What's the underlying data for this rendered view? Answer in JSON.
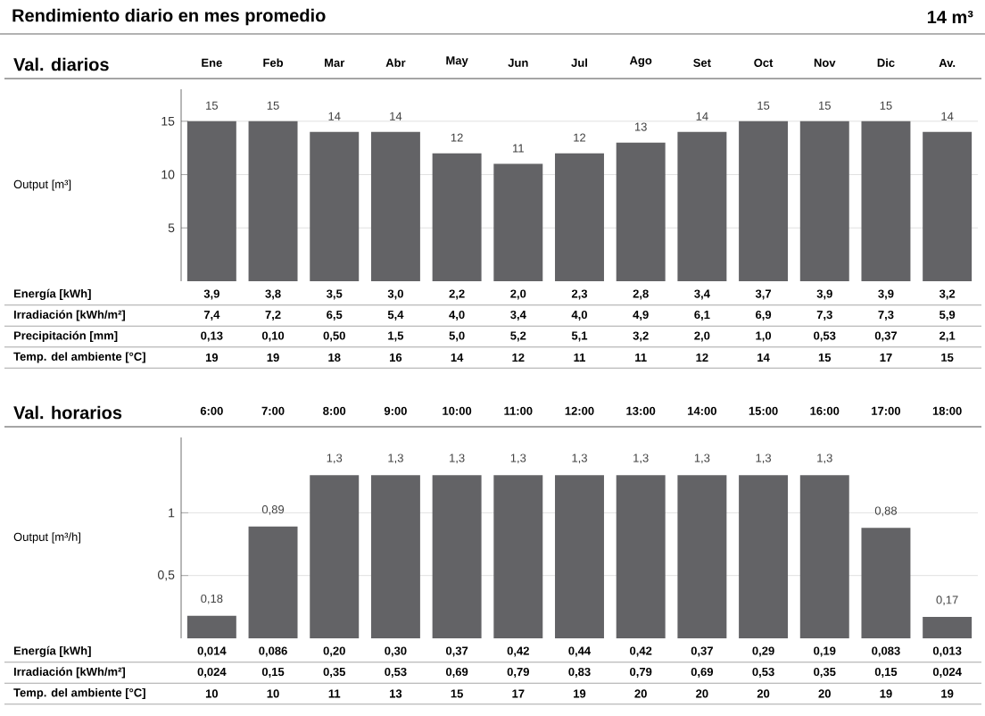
{
  "chart_data": [
    {
      "type": "bar",
      "title": "Val. diarios",
      "ylabel": "Output [m³]",
      "annotations": [
        "Rendimiento diario en mes promedio",
        "14 m³"
      ],
      "categories": [
        "Ene",
        "Feb",
        "Mar",
        "Abr",
        "May",
        "Jun",
        "Jul",
        "Ago",
        "Set",
        "Oct",
        "Nov",
        "Dic",
        "Av."
      ],
      "ylim": [
        0,
        18
      ],
      "yticks": [
        5,
        10,
        15
      ],
      "grid": "y",
      "color": "#636366",
      "values": [
        15,
        15,
        14,
        14,
        12,
        11,
        12,
        13,
        14,
        15,
        15,
        15,
        14
      ],
      "value_labels": [
        "15",
        "15",
        "14",
        "14",
        "12",
        "11",
        "12",
        "13",
        "14",
        "15",
        "15",
        "15",
        "14"
      ]
    },
    {
      "type": "other",
      "title": "Energía [kWh]",
      "values": [
        3.9,
        3.8,
        3.5,
        3.0,
        2.2,
        2.0,
        2.3,
        2.8,
        3.4,
        3.7,
        3.9,
        3.9,
        3.2
      ],
      "value_labels": [
        "3,9",
        "3,8",
        "3,5",
        "3,0",
        "2,2",
        "2,0",
        "2,3",
        "2,8",
        "3,4",
        "3,7",
        "3,9",
        "3,9",
        "3,2"
      ]
    },
    {
      "type": "other",
      "title": "Irradiación [kWh/m²]",
      "values": [
        7.4,
        7.2,
        6.5,
        5.4,
        4.0,
        3.4,
        4.0,
        4.9,
        6.1,
        6.9,
        7.3,
        7.3,
        5.9
      ],
      "value_labels": [
        "7,4",
        "7,2",
        "6,5",
        "5,4",
        "4,0",
        "3,4",
        "4,0",
        "4,9",
        "6,1",
        "6,9",
        "7,3",
        "7,3",
        "5,9"
      ]
    },
    {
      "type": "other",
      "title": "Precipitación [mm]",
      "values": [
        0.13,
        0.1,
        0.5,
        1.5,
        5.0,
        5.2,
        5.1,
        3.2,
        2.0,
        1.0,
        0.53,
        0.37,
        2.1
      ],
      "value_labels": [
        "0,13",
        "0,10",
        "0,50",
        "1,5",
        "5,0",
        "5,2",
        "5,1",
        "3,2",
        "2,0",
        "1,0",
        "0,53",
        "0,37",
        "2,1"
      ]
    },
    {
      "type": "other",
      "title": "Temp. del ambiente [°C]",
      "values": [
        19,
        19,
        18,
        16,
        14,
        12,
        11,
        11,
        12,
        14,
        15,
        17,
        15
      ],
      "value_labels": [
        "19",
        "19",
        "18",
        "16",
        "14",
        "12",
        "11",
        "11",
        "12",
        "14",
        "15",
        "17",
        "15"
      ]
    },
    {
      "type": "bar",
      "title": "Val. horarios",
      "ylabel": "Output [m³/h]",
      "categories": [
        "6:00",
        "7:00",
        "8:00",
        "9:00",
        "10:00",
        "11:00",
        "12:00",
        "13:00",
        "14:00",
        "15:00",
        "16:00",
        "17:00",
        "18:00"
      ],
      "ylim": [
        0,
        1.6
      ],
      "yticks": [
        {
          "value": 0.5,
          "label": "0,5"
        },
        1
      ],
      "grid": "y",
      "color": "#636366",
      "values": [
        0.18,
        0.89,
        1.3,
        1.3,
        1.3,
        1.3,
        1.3,
        1.3,
        1.3,
        1.3,
        1.3,
        0.88,
        0.17
      ],
      "value_labels": [
        "0,18",
        "0,89",
        "1,3",
        "1,3",
        "1,3",
        "1,3",
        "1,3",
        "1,3",
        "1,3",
        "1,3",
        "1,3",
        "0,88",
        "0,17"
      ]
    },
    {
      "type": "other",
      "title": "Energía [kWh]",
      "values": [
        0.014,
        0.086,
        0.2,
        0.3,
        0.37,
        0.42,
        0.44,
        0.42,
        0.37,
        0.29,
        0.19,
        0.083,
        0.013
      ],
      "value_labels": [
        "0,014",
        "0,086",
        "0,20",
        "0,30",
        "0,37",
        "0,42",
        "0,44",
        "0,42",
        "0,37",
        "0,29",
        "0,19",
        "0,083",
        "0,013"
      ]
    },
    {
      "type": "other",
      "title": "Irradiación [kWh/m²]",
      "values": [
        0.024,
        0.15,
        0.35,
        0.53,
        0.69,
        0.79,
        0.83,
        0.79,
        0.69,
        0.53,
        0.35,
        0.15,
        0.024
      ],
      "value_labels": [
        "0,024",
        "0,15",
        "0,35",
        "0,53",
        "0,69",
        "0,79",
        "0,83",
        "0,79",
        "0,69",
        "0,53",
        "0,35",
        "0,15",
        "0,024"
      ]
    },
    {
      "type": "other",
      "title": "Temp. del ambiente [°C]",
      "values": [
        10,
        10,
        11,
        13,
        15,
        17,
        19,
        20,
        20,
        20,
        20,
        19,
        19
      ],
      "value_labels": [
        "10",
        "10",
        "11",
        "13",
        "15",
        "17",
        "19",
        "20",
        "20",
        "20",
        "20",
        "19",
        "19"
      ]
    }
  ]
}
